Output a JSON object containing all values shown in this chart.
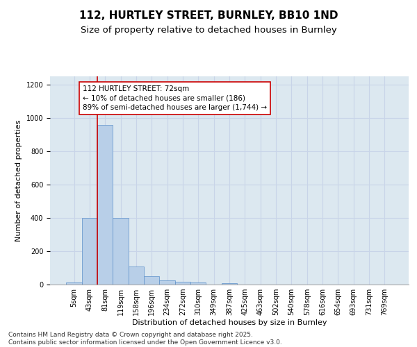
{
  "title_line1": "112, HURTLEY STREET, BURNLEY, BB10 1ND",
  "title_line2": "Size of property relative to detached houses in Burnley",
  "xlabel": "Distribution of detached houses by size in Burnley",
  "ylabel": "Number of detached properties",
  "categories": [
    "5sqm",
    "43sqm",
    "81sqm",
    "119sqm",
    "158sqm",
    "196sqm",
    "234sqm",
    "272sqm",
    "310sqm",
    "349sqm",
    "387sqm",
    "425sqm",
    "463sqm",
    "502sqm",
    "540sqm",
    "578sqm",
    "616sqm",
    "654sqm",
    "693sqm",
    "731sqm",
    "769sqm"
  ],
  "values": [
    12,
    400,
    960,
    400,
    110,
    50,
    25,
    18,
    12,
    0,
    8,
    0,
    0,
    0,
    0,
    0,
    0,
    0,
    0,
    0,
    0
  ],
  "bar_color": "#b8cfe8",
  "bar_edge_color": "#5b8fc9",
  "vline_color": "#cc0000",
  "vline_x_index": 1.5,
  "annotation_text": "112 HURTLEY STREET: 72sqm\n← 10% of detached houses are smaller (186)\n89% of semi-detached houses are larger (1,744) →",
  "annotation_box_color": "#cc0000",
  "ylim": [
    0,
    1250
  ],
  "yticks": [
    0,
    200,
    400,
    600,
    800,
    1000,
    1200
  ],
  "grid_color": "#c8d4e8",
  "background_color": "#dce8f0",
  "footnote": "Contains HM Land Registry data © Crown copyright and database right 2025.\nContains public sector information licensed under the Open Government Licence v3.0.",
  "title_fontsize": 11,
  "subtitle_fontsize": 9.5,
  "axis_label_fontsize": 8,
  "tick_fontsize": 7,
  "annotation_fontsize": 7.5,
  "footnote_fontsize": 6.5
}
